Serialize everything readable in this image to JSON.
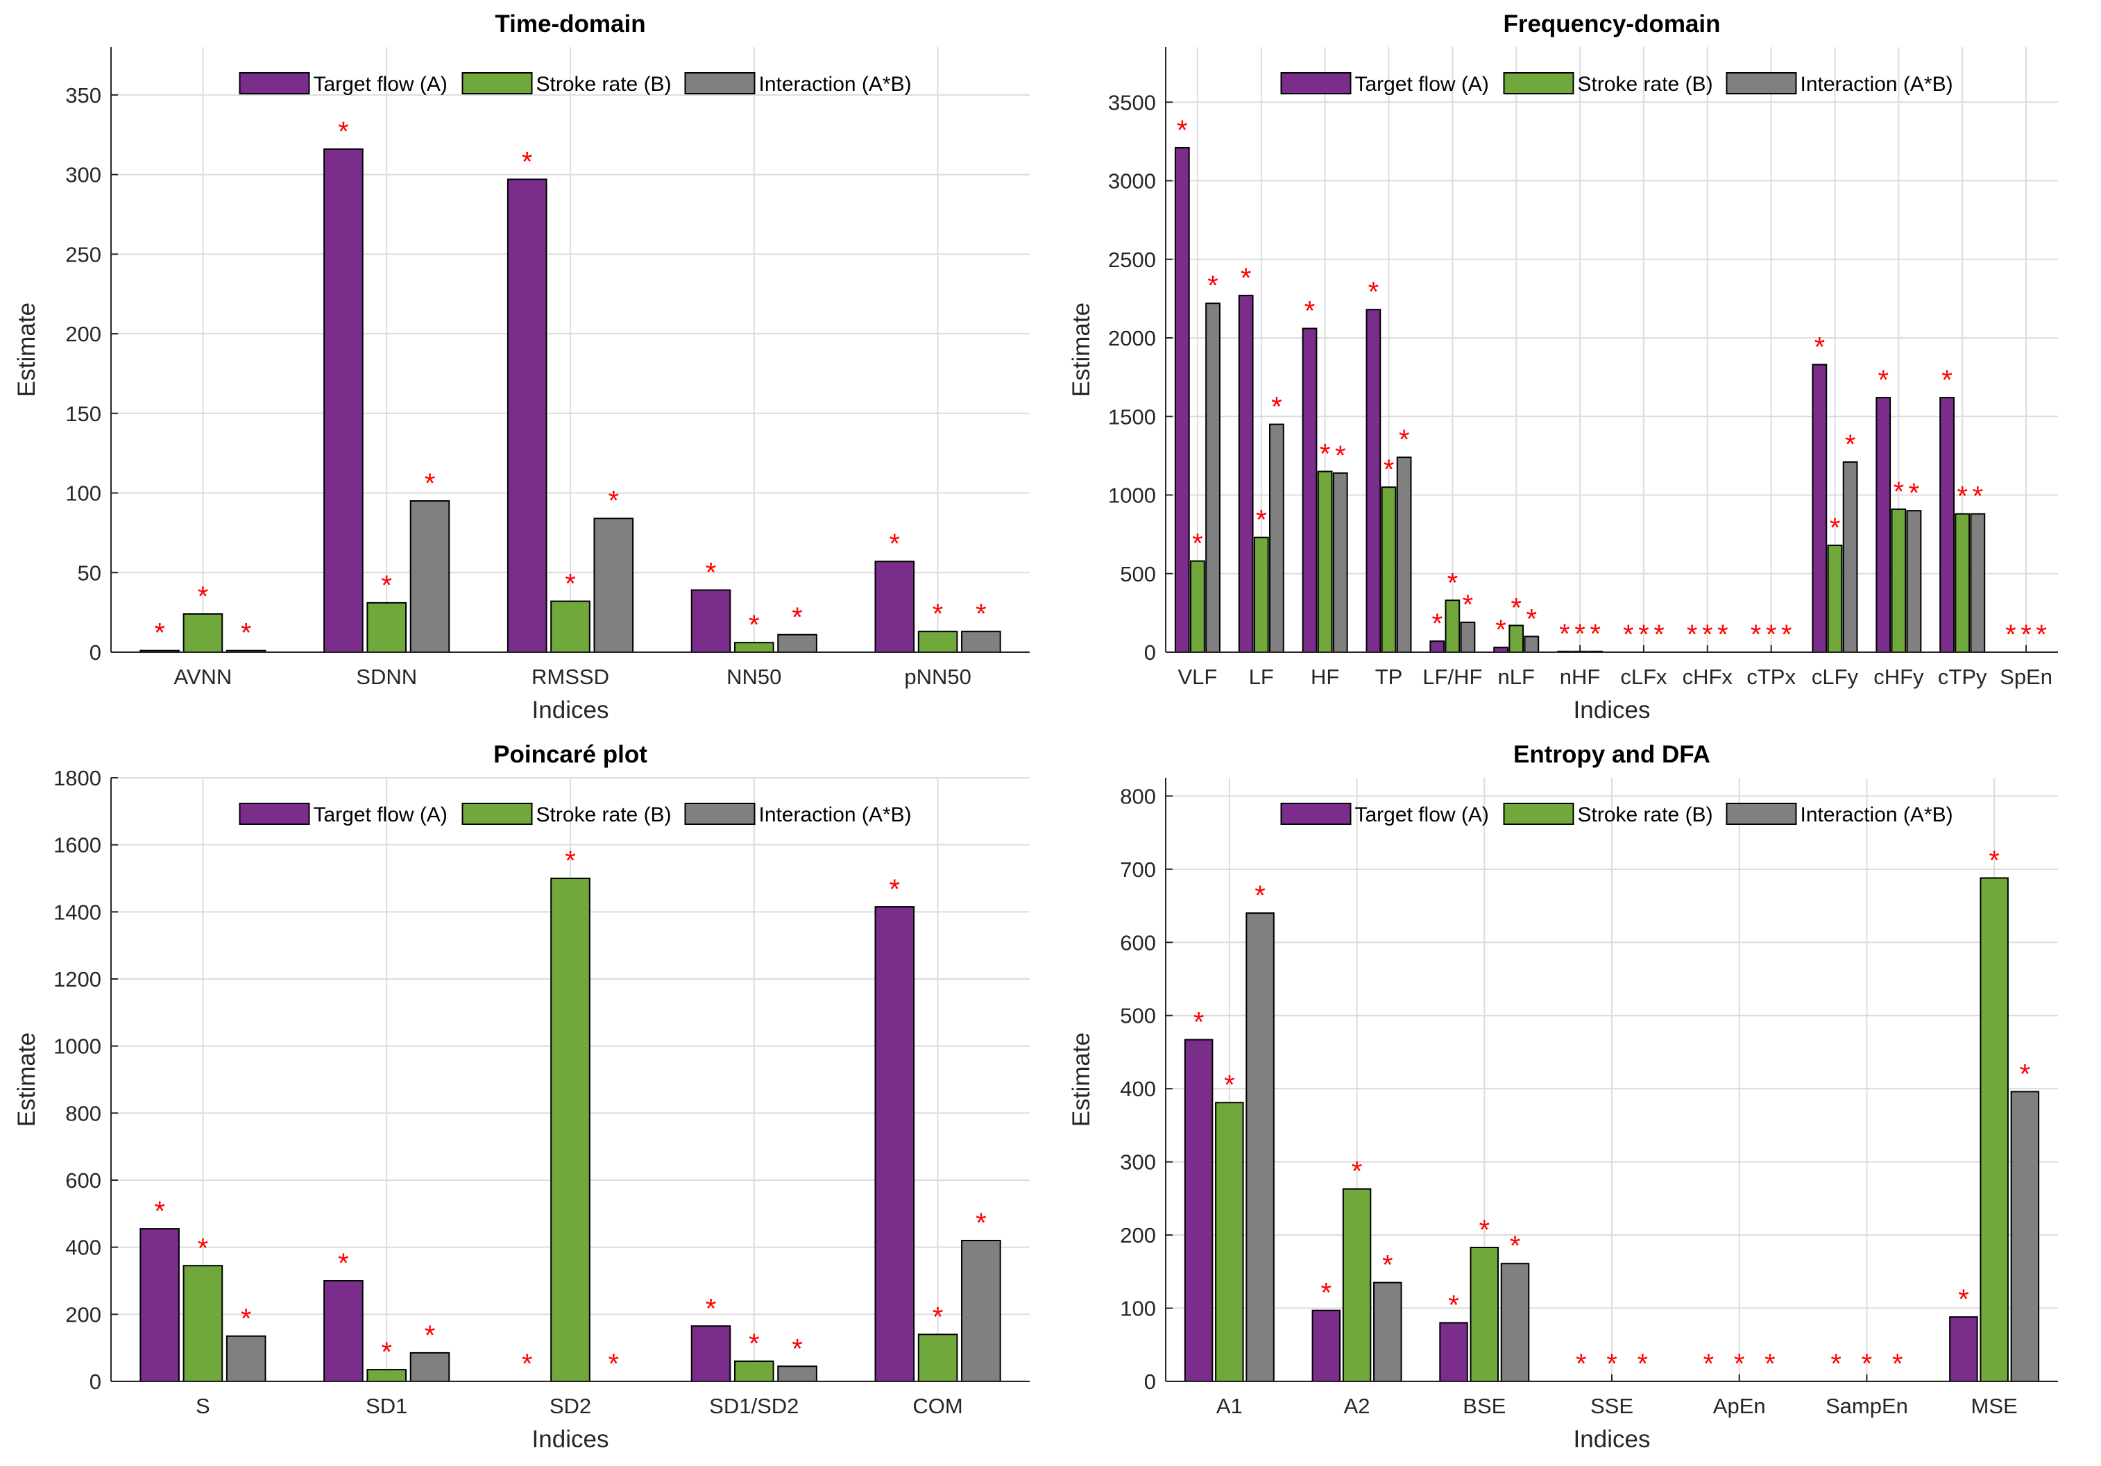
{
  "colors": {
    "target": "#7b2d8b",
    "stroke": "#70a83b",
    "interaction": "#808080",
    "star": "#ff0000",
    "grid": "#dcdcdc",
    "axis": "#262626"
  },
  "chart_data": [
    {
      "type": "bar",
      "title": "Time-domain",
      "xlabel": "Indices",
      "ylabel": "Estimate",
      "ylim": [
        0,
        380
      ],
      "yticks": [
        0,
        50,
        100,
        150,
        200,
        250,
        300,
        350
      ],
      "categories": [
        "AVNN",
        "SDNN",
        "RMSSD",
        "NN50",
        "pNN50"
      ],
      "legend": [
        "Target flow (A)",
        "Stroke rate (B)",
        "Interaction (A*B)"
      ],
      "legend_position": "top-center",
      "series": [
        {
          "name": "Target flow (A)",
          "values": [
            1,
            316,
            297,
            39,
            57
          ]
        },
        {
          "name": "Stroke rate (B)",
          "values": [
            24,
            31,
            32,
            6,
            13
          ]
        },
        {
          "name": "Interaction (A*B)",
          "values": [
            1,
            95,
            84,
            11,
            13
          ]
        }
      ],
      "significance": [
        [
          true,
          true,
          true,
          true,
          true
        ],
        [
          true,
          true,
          true,
          true,
          true
        ],
        [
          true,
          true,
          true,
          true,
          true
        ]
      ],
      "star_label": "*"
    },
    {
      "type": "bar",
      "title": "Frequency-domain",
      "xlabel": "Indices",
      "ylabel": "Estimate",
      "ylim": [
        0,
        3850
      ],
      "yticks": [
        0,
        500,
        1000,
        1500,
        2000,
        2500,
        3000,
        3500
      ],
      "categories": [
        "VLF",
        "LF",
        "HF",
        "TP",
        "LF/HF",
        "nLF",
        "nHF",
        "cLFx",
        "cHFx",
        "cTPx",
        "cLFy",
        "cHFy",
        "cTPy",
        "SpEn"
      ],
      "legend": [
        "Target flow (A)",
        "Stroke rate (B)",
        "Interaction (A*B)"
      ],
      "legend_position": "top-center",
      "series": [
        {
          "name": "Target flow (A)",
          "values": [
            3210,
            2270,
            2060,
            2180,
            70,
            30,
            5,
            0,
            0,
            0,
            1830,
            1620,
            1620,
            0
          ]
        },
        {
          "name": "Stroke rate (B)",
          "values": [
            580,
            730,
            1150,
            1050,
            330,
            170,
            5,
            0,
            0,
            0,
            680,
            910,
            880,
            0
          ]
        },
        {
          "name": "Interaction (A*B)",
          "values": [
            2220,
            1450,
            1140,
            1240,
            190,
            100,
            5,
            0,
            0,
            0,
            1210,
            900,
            880,
            0
          ]
        }
      ],
      "significance": [
        [
          true,
          true,
          true,
          true,
          true,
          true,
          true,
          true,
          true,
          true,
          true,
          true,
          true,
          true
        ],
        [
          true,
          true,
          true,
          true,
          true,
          true,
          true,
          true,
          true,
          true,
          true,
          true,
          true,
          true
        ],
        [
          true,
          true,
          true,
          true,
          true,
          true,
          true,
          true,
          true,
          true,
          true,
          true,
          true,
          true
        ]
      ],
      "star_label": "*"
    },
    {
      "type": "bar",
      "title": "Poincaré plot",
      "xlabel": "Indices",
      "ylabel": "Estimate",
      "ylim": [
        0,
        1800
      ],
      "yticks": [
        0,
        200,
        400,
        600,
        800,
        1000,
        1200,
        1400,
        1600,
        1800
      ],
      "categories": [
        "S",
        "SD1",
        "SD2",
        "SD1/SD2",
        "COM"
      ],
      "legend": [
        "Target flow (A)",
        "Stroke rate (B)",
        "Interaction (A*B)"
      ],
      "legend_position": "top-center",
      "series": [
        {
          "name": "Target flow (A)",
          "values": [
            455,
            300,
            0,
            165,
            1415
          ]
        },
        {
          "name": "Stroke rate (B)",
          "values": [
            345,
            35,
            1500,
            60,
            140
          ]
        },
        {
          "name": "Interaction (A*B)",
          "values": [
            135,
            85,
            0,
            45,
            420
          ]
        }
      ],
      "significance": [
        [
          true,
          true,
          true,
          true,
          true
        ],
        [
          true,
          true,
          true,
          true,
          true
        ],
        [
          true,
          true,
          true,
          true,
          true
        ]
      ],
      "star_label": "*"
    },
    {
      "type": "bar",
      "title": "Entropy and DFA",
      "xlabel": "Indices",
      "ylabel": "Estimate",
      "ylim": [
        0,
        825
      ],
      "yticks": [
        0,
        100,
        200,
        300,
        400,
        500,
        600,
        700,
        800
      ],
      "categories": [
        "A1",
        "A2",
        "BSE",
        "SSE",
        "ApEn",
        "SampEn",
        "MSE"
      ],
      "legend": [
        "Target flow (A)",
        "Stroke rate (B)",
        "Interaction (A*B)"
      ],
      "legend_position": "top-center",
      "series": [
        {
          "name": "Target flow (A)",
          "values": [
            467,
            97,
            80,
            0,
            0,
            0,
            88
          ]
        },
        {
          "name": "Stroke rate (B)",
          "values": [
            381,
            263,
            183,
            0,
            0,
            0,
            688
          ]
        },
        {
          "name": "Interaction (A*B)",
          "values": [
            640,
            135,
            161,
            0,
            0,
            0,
            396
          ]
        }
      ],
      "significance": [
        [
          true,
          true,
          true,
          true,
          true,
          true,
          true
        ],
        [
          true,
          true,
          true,
          true,
          true,
          true,
          true
        ],
        [
          true,
          true,
          true,
          true,
          true,
          true,
          true
        ]
      ],
      "star_label": "*"
    }
  ]
}
